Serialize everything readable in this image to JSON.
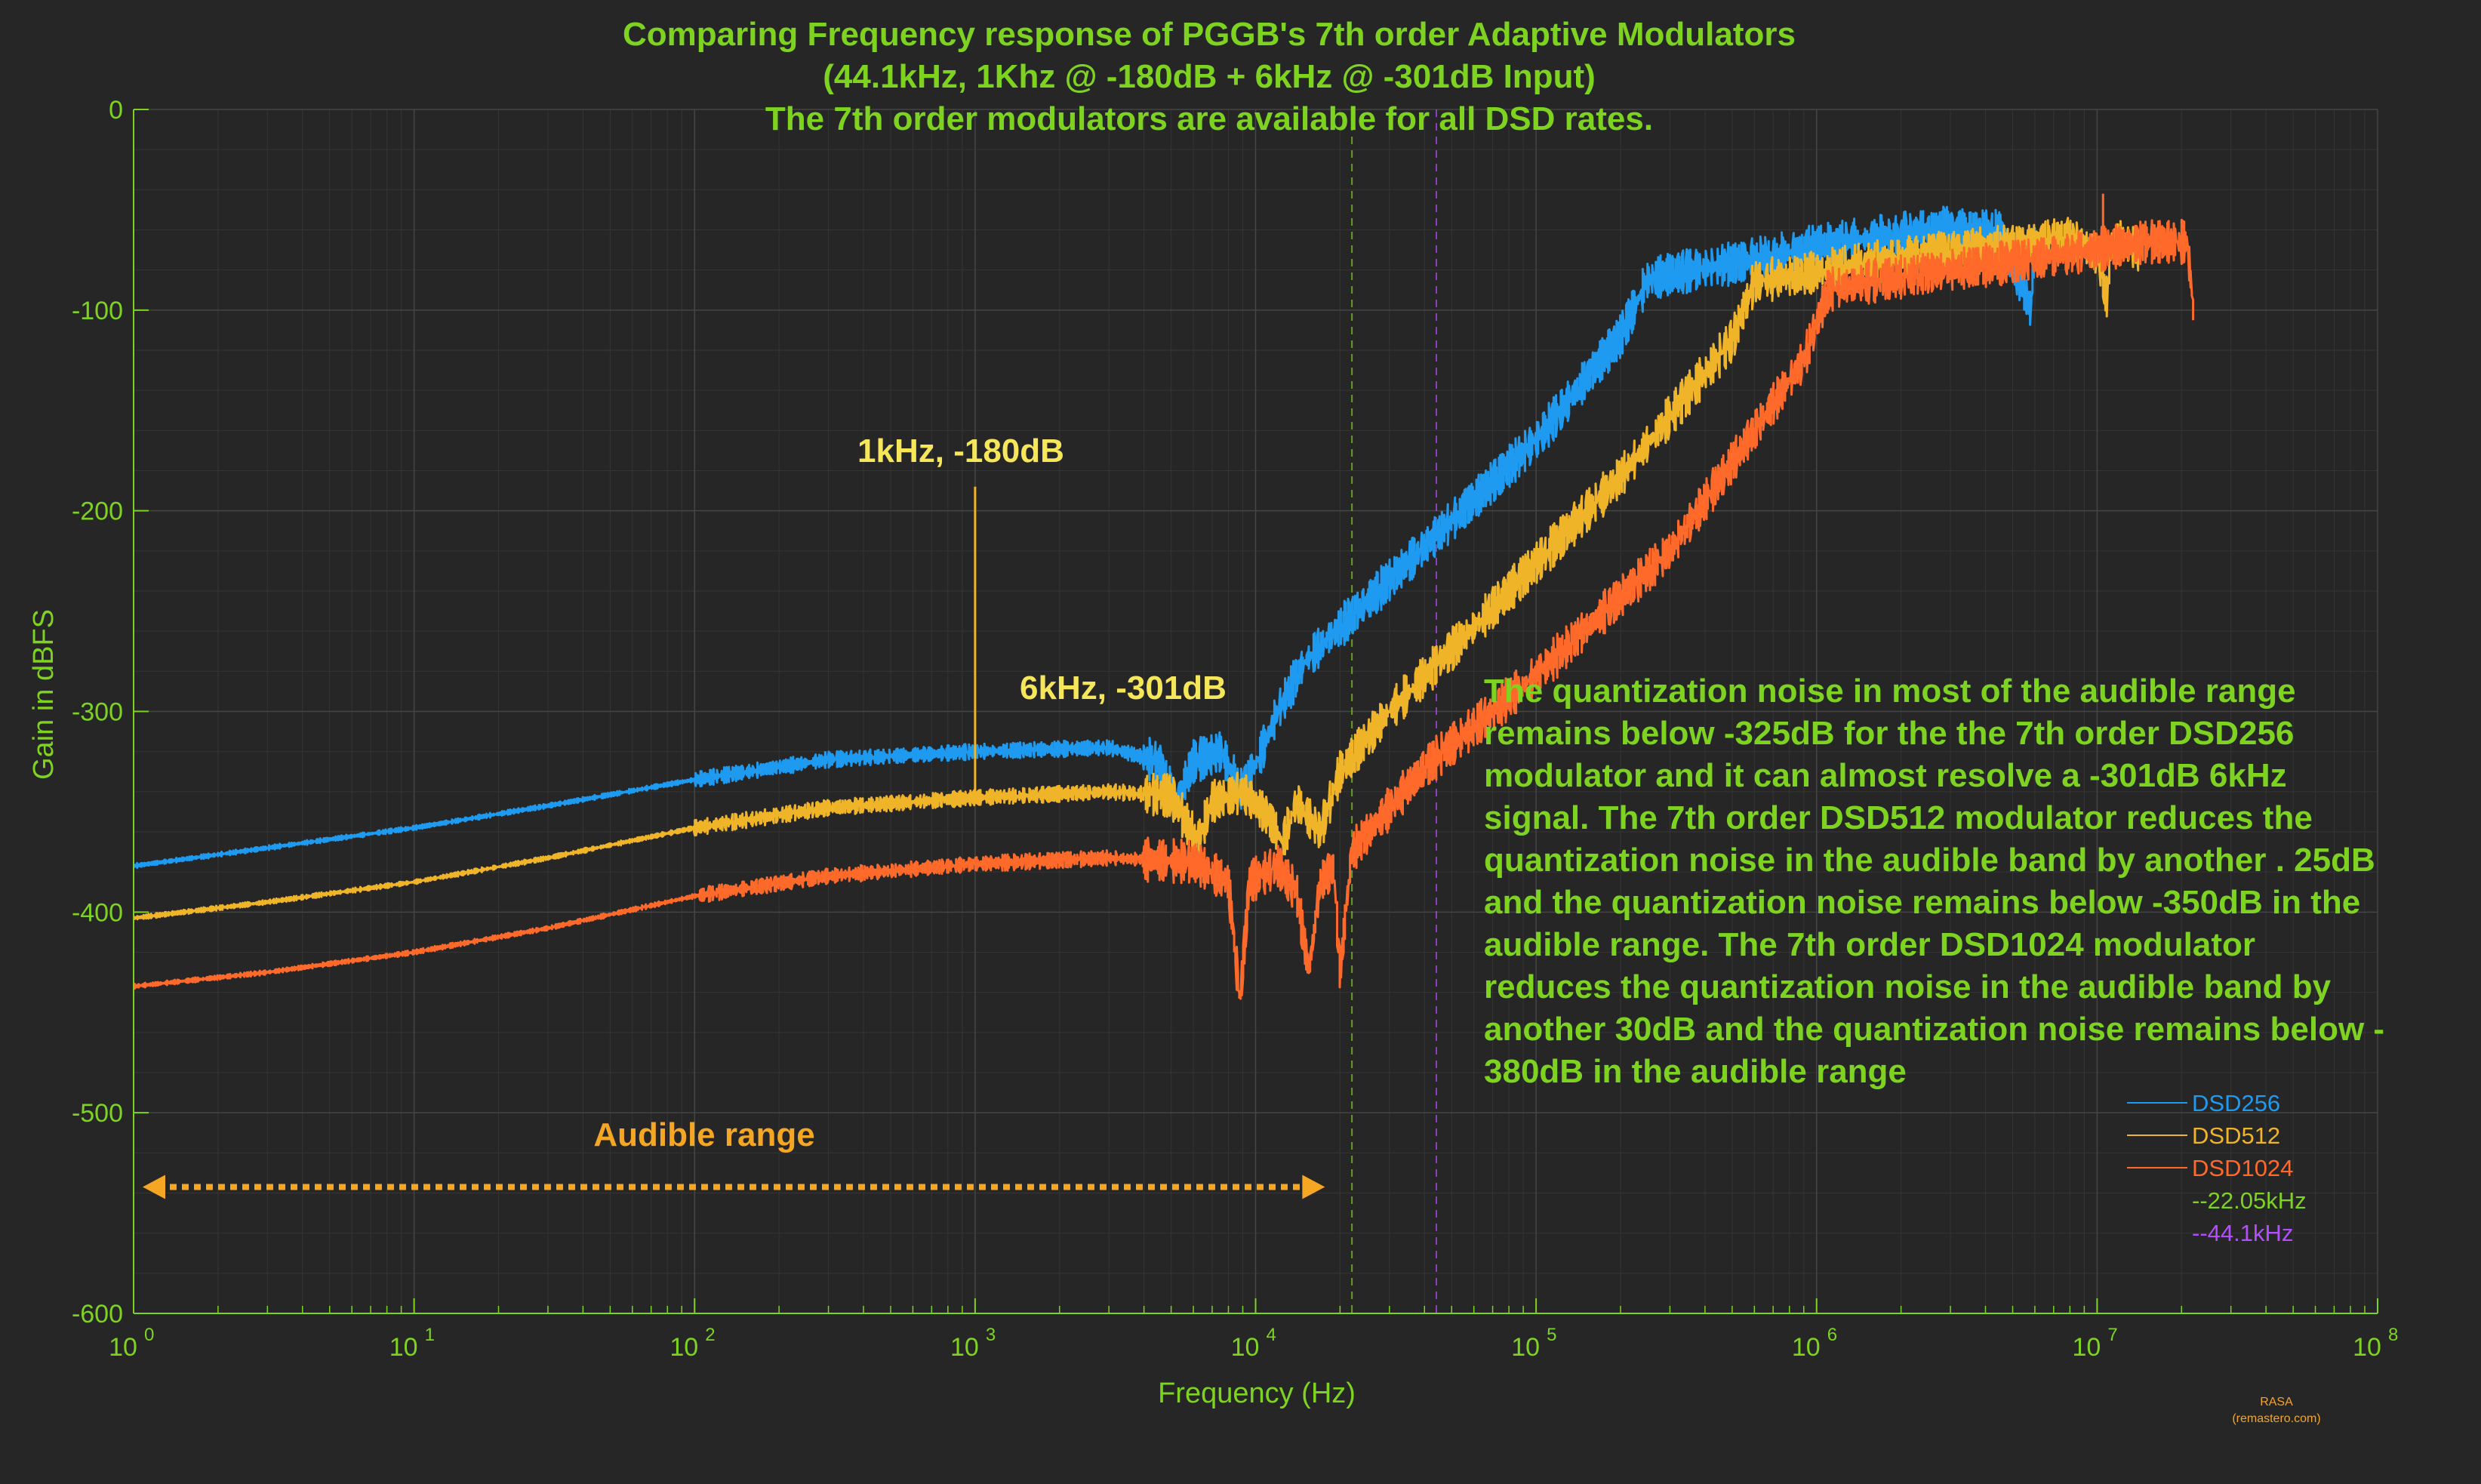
{
  "chart_data": {
    "type": "line",
    "title_lines": [
      "Comparing Frequency response of PGGB's 7th order Adaptive Modulators",
      "(44.1kHz, 1Khz @ -180dB  + 6kHz @ -301dB Input)",
      "The 7th order modulators are available for all DSD rates."
    ],
    "xlabel": "Frequency (Hz)",
    "ylabel": "Gain in dBFS",
    "x_scale": "log",
    "xlim": [
      1,
      100000000
    ],
    "ylim": [
      -600,
      0
    ],
    "x_ticks": [
      {
        "base": "10",
        "exp": "0"
      },
      {
        "base": "10",
        "exp": "1"
      },
      {
        "base": "10",
        "exp": "2"
      },
      {
        "base": "10",
        "exp": "3"
      },
      {
        "base": "10",
        "exp": "4"
      },
      {
        "base": "10",
        "exp": "5"
      },
      {
        "base": "10",
        "exp": "6"
      },
      {
        "base": "10",
        "exp": "7"
      },
      {
        "base": "10",
        "exp": "8"
      }
    ],
    "y_ticks": [
      "0",
      "-100",
      "-200",
      "-300",
      "-400",
      "-500",
      "-600"
    ],
    "grid": true,
    "legend_position": "bottom-right",
    "colors": {
      "background": "#262626",
      "axis": "#7ed321",
      "dsd256": "#1e9bf0",
      "dsd512": "#f0b429",
      "dsd1024": "#ff6a2b",
      "vline_22k": "#7ed321",
      "vline_44k": "#b44dff"
    },
    "series": [
      {
        "name": "DSD256",
        "points": [
          [
            1,
            -377
          ],
          [
            3,
            -368
          ],
          [
            10,
            -358
          ],
          [
            30,
            -347
          ],
          [
            100,
            -334
          ],
          [
            300,
            -324
          ],
          [
            1000,
            -320
          ],
          [
            3000,
            -318
          ],
          [
            4500,
            -325
          ],
          [
            5200,
            -345
          ],
          [
            6000,
            -325
          ],
          [
            7500,
            -320
          ],
          [
            9000,
            -340
          ],
          [
            10500,
            -320
          ],
          [
            12000,
            -300
          ],
          [
            15000,
            -275
          ],
          [
            20000,
            -258
          ],
          [
            40000,
            -218
          ],
          [
            100000,
            -165
          ],
          [
            200000,
            -113
          ],
          [
            250000,
            -85
          ],
          [
            300000,
            -82
          ],
          [
            600000,
            -75
          ],
          [
            1000000,
            -68
          ],
          [
            2000000,
            -62
          ],
          [
            3000000,
            -59
          ],
          [
            4500000,
            -61
          ],
          [
            5500000,
            -90
          ],
          [
            5800000,
            -100
          ],
          [
            6000000,
            -62
          ]
        ]
      },
      {
        "name": "DSD512",
        "points": [
          [
            1,
            -403
          ],
          [
            3,
            -395
          ],
          [
            10,
            -385
          ],
          [
            30,
            -373
          ],
          [
            100,
            -358
          ],
          [
            300,
            -348
          ],
          [
            1000,
            -343
          ],
          [
            3000,
            -340
          ],
          [
            5000,
            -342
          ],
          [
            6200,
            -365
          ],
          [
            7000,
            -345
          ],
          [
            9000,
            -340
          ],
          [
            11000,
            -352
          ],
          [
            12500,
            -365
          ],
          [
            14000,
            -345
          ],
          [
            17000,
            -360
          ],
          [
            20000,
            -330
          ],
          [
            30000,
            -300
          ],
          [
            60000,
            -258
          ],
          [
            200000,
            -183
          ],
          [
            500000,
            -115
          ],
          [
            600000,
            -86
          ],
          [
            900000,
            -82
          ],
          [
            2000000,
            -74
          ],
          [
            5000000,
            -68
          ],
          [
            8000000,
            -64
          ],
          [
            10000000,
            -72
          ],
          [
            10800000,
            -95
          ],
          [
            11200000,
            -68
          ],
          [
            12500000,
            -66
          ],
          [
            14000000,
            -70
          ]
        ]
      },
      {
        "name": "DSD1024",
        "points": [
          [
            1,
            -437
          ],
          [
            3,
            -430
          ],
          [
            10,
            -420
          ],
          [
            30,
            -408
          ],
          [
            100,
            -392
          ],
          [
            300,
            -382
          ],
          [
            1000,
            -376
          ],
          [
            3000,
            -373
          ],
          [
            6000,
            -375
          ],
          [
            8000,
            -385
          ],
          [
            8800,
            -445
          ],
          [
            9500,
            -385
          ],
          [
            12000,
            -377
          ],
          [
            14000,
            -390
          ],
          [
            15500,
            -430
          ],
          [
            17000,
            -385
          ],
          [
            19000,
            -378
          ],
          [
            20000,
            -430
          ],
          [
            22000,
            -370
          ],
          [
            40000,
            -328
          ],
          [
            100000,
            -282
          ],
          [
            300000,
            -220
          ],
          [
            900000,
            -125
          ],
          [
            1100000,
            -90
          ],
          [
            1500000,
            -86
          ],
          [
            3000000,
            -80
          ],
          [
            8000000,
            -72
          ],
          [
            15000000,
            -66
          ],
          [
            21000000,
            -66
          ],
          [
            22000000,
            -100
          ]
        ]
      }
    ],
    "spikes": [
      {
        "series": "DSD512",
        "x": 1000,
        "y": -188
      },
      {
        "series": "DSD1024",
        "x": 10500000,
        "y": -42
      }
    ],
    "vlines": [
      {
        "name": "--22.05kHz",
        "x": 22050
      },
      {
        "name": "--44.1kHz",
        "x": 44100
      }
    ],
    "annotations": {
      "peak_1k": "1kHz, -180dB",
      "peak_6k": "6kHz, -301dB",
      "audible": "Audible range",
      "audible_range_hz": [
        1,
        20000
      ],
      "note_lines": [
        "The quantization noise in most of the audible range",
        "remains below -325dB for the the 7th order DSD256",
        "modulator and it can almost resolve a -301dB 6kHz",
        "signal. The 7th order DSD512 modulator reduces the",
        "quantization noise in the audible band by another . 25dB",
        "and the quantization noise remains below -350dB in the",
        "audible range. The 7th order DSD1024 modulator",
        "reduces the quantization noise in the audible band by",
        "another 30dB and the quantization noise remains below -",
        "380dB in the audible range"
      ]
    },
    "credit": [
      "RASA",
      "(remastero.com)"
    ]
  }
}
